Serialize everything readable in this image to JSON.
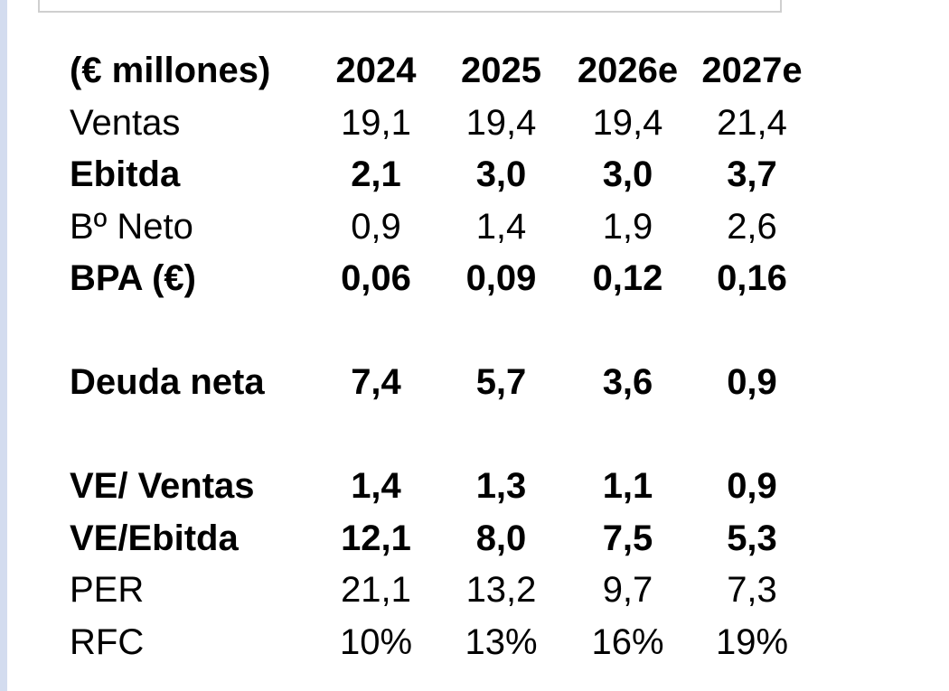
{
  "table": {
    "unit_label": "(€ millones)",
    "years": [
      "2024",
      "2025",
      "2026e",
      "2027e"
    ],
    "rows": [
      {
        "label": "Ventas",
        "bold": false,
        "values": [
          "19,1",
          "19,4",
          "19,4",
          "21,4"
        ]
      },
      {
        "label": "Ebitda",
        "bold": true,
        "values": [
          "2,1",
          "3,0",
          "3,0",
          "3,7"
        ]
      },
      {
        "label": "Bº Neto",
        "bold": false,
        "values": [
          "0,9",
          "1,4",
          "1,9",
          "2,6"
        ]
      },
      {
        "label": "BPA (€)",
        "bold": true,
        "values": [
          "0,06",
          "0,09",
          "0,12",
          "0,16"
        ]
      },
      {
        "label": "Deuda neta",
        "bold": true,
        "values": [
          "7,4",
          "5,7",
          "3,6",
          "0,9"
        ]
      },
      {
        "label": "VE/ Ventas",
        "bold": true,
        "values": [
          "1,4",
          "1,3",
          "1,1",
          "0,9"
        ]
      },
      {
        "label": "VE/Ebitda",
        "bold": true,
        "values": [
          "12,1",
          "8,0",
          "7,5",
          "5,3"
        ]
      },
      {
        "label": "PER",
        "bold": false,
        "values": [
          "21,1",
          "13,2",
          "9,7",
          "7,3"
        ]
      },
      {
        "label": "RFC",
        "bold": false,
        "values": [
          "10%",
          "13%",
          "16%",
          "19%"
        ]
      }
    ]
  }
}
